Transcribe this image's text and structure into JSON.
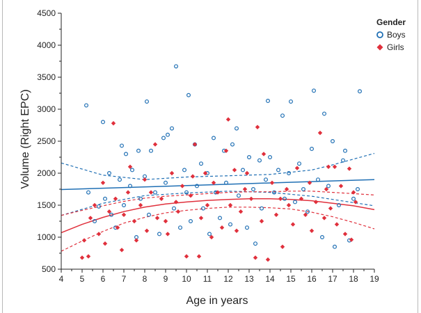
{
  "chart_data": {
    "type": "scatter",
    "xlabel": "Age in years",
    "ylabel": "Volume (Right EPC)",
    "xlim": [
      4,
      19
    ],
    "ylim": [
      500,
      4500
    ],
    "xticks": [
      "4",
      "5",
      "6",
      "7",
      "8",
      "9",
      "10",
      "11",
      "12",
      "13",
      "14",
      "15",
      "16",
      "17",
      "18",
      "19"
    ],
    "yticks": [
      "500",
      "1000",
      "1500",
      "2000",
      "2500",
      "3000",
      "3500",
      "4000",
      "4500"
    ],
    "grid": false,
    "legend": {
      "title": "Gender",
      "placement": "right",
      "entries": [
        {
          "label": "Boys",
          "color": "#1f6fb4",
          "marker": "open-circle"
        },
        {
          "label": "Girls",
          "color": "#e0303c",
          "marker": "filled-diamond"
        }
      ]
    },
    "series": [
      {
        "name": "Boys",
        "color": "#1f6fb4",
        "marker": "open-circle",
        "points": [
          [
            5.2,
            3060
          ],
          [
            5.3,
            1700
          ],
          [
            5.6,
            1250
          ],
          [
            5.8,
            1480
          ],
          [
            6.0,
            2800
          ],
          [
            6.1,
            1600
          ],
          [
            6.3,
            2000
          ],
          [
            6.4,
            1350
          ],
          [
            6.6,
            1150
          ],
          [
            6.8,
            1900
          ],
          [
            6.9,
            2430
          ],
          [
            7.0,
            1500
          ],
          [
            7.1,
            2300
          ],
          [
            7.3,
            1800
          ],
          [
            7.4,
            2050
          ],
          [
            7.6,
            1000
          ],
          [
            7.7,
            2350
          ],
          [
            7.8,
            1600
          ],
          [
            8.0,
            1950
          ],
          [
            8.1,
            3120
          ],
          [
            8.2,
            1350
          ],
          [
            8.3,
            2350
          ],
          [
            8.5,
            1700
          ],
          [
            8.7,
            1050
          ],
          [
            8.9,
            2550
          ],
          [
            9.0,
            1850
          ],
          [
            9.1,
            2600
          ],
          [
            9.3,
            2700
          ],
          [
            9.4,
            1450
          ],
          [
            9.5,
            3670
          ],
          [
            9.7,
            1150
          ],
          [
            9.9,
            2050
          ],
          [
            10.0,
            1700
          ],
          [
            10.1,
            3220
          ],
          [
            10.2,
            1250
          ],
          [
            10.4,
            2450
          ],
          [
            10.5,
            1800
          ],
          [
            10.7,
            2150
          ],
          [
            10.8,
            1450
          ],
          [
            11.0,
            2000
          ],
          [
            11.1,
            1050
          ],
          [
            11.3,
            2550
          ],
          [
            11.4,
            1700
          ],
          [
            11.6,
            1300
          ],
          [
            11.8,
            2350
          ],
          [
            11.9,
            1850
          ],
          [
            12.1,
            1200
          ],
          [
            12.2,
            2450
          ],
          [
            12.4,
            2700
          ],
          [
            12.5,
            1650
          ],
          [
            12.7,
            2050
          ],
          [
            12.9,
            1150
          ],
          [
            13.0,
            2250
          ],
          [
            13.2,
            1750
          ],
          [
            13.3,
            900
          ],
          [
            13.5,
            2200
          ],
          [
            13.6,
            1450
          ],
          [
            13.8,
            1900
          ],
          [
            13.9,
            3130
          ],
          [
            14.0,
            2250
          ],
          [
            14.2,
            1700
          ],
          [
            14.4,
            2050
          ],
          [
            14.6,
            2900
          ],
          [
            14.7,
            1600
          ],
          [
            14.9,
            2000
          ],
          [
            15.0,
            3120
          ],
          [
            15.2,
            1550
          ],
          [
            15.4,
            2150
          ],
          [
            15.6,
            1750
          ],
          [
            15.8,
            1400
          ],
          [
            16.0,
            2380
          ],
          [
            16.1,
            3290
          ],
          [
            16.3,
            1900
          ],
          [
            16.5,
            1000
          ],
          [
            16.6,
            2930
          ],
          [
            16.8,
            1800
          ],
          [
            17.0,
            2500
          ],
          [
            17.1,
            850
          ],
          [
            17.3,
            1500
          ],
          [
            17.5,
            2200
          ],
          [
            17.6,
            2350
          ],
          [
            17.8,
            950
          ],
          [
            18.0,
            1600
          ],
          [
            18.2,
            1750
          ],
          [
            18.3,
            3280
          ]
        ]
      },
      {
        "name": "Girls",
        "color": "#e0303c",
        "marker": "filled-diamond",
        "points": [
          [
            5.0,
            680
          ],
          [
            5.1,
            950
          ],
          [
            5.3,
            700
          ],
          [
            5.4,
            1300
          ],
          [
            5.6,
            1500
          ],
          [
            5.8,
            1050
          ],
          [
            6.0,
            1850
          ],
          [
            6.1,
            900
          ],
          [
            6.3,
            1400
          ],
          [
            6.5,
            2780
          ],
          [
            6.6,
            1600
          ],
          [
            6.7,
            1150
          ],
          [
            6.9,
            800
          ],
          [
            7.0,
            1350
          ],
          [
            7.2,
            1700
          ],
          [
            7.3,
            2100
          ],
          [
            7.5,
            1250
          ],
          [
            7.6,
            950
          ],
          [
            7.8,
            1500
          ],
          [
            8.0,
            1900
          ],
          [
            8.1,
            1100
          ],
          [
            8.3,
            1700
          ],
          [
            8.5,
            2450
          ],
          [
            8.6,
            1300
          ],
          [
            8.8,
            1600
          ],
          [
            9.0,
            1250
          ],
          [
            9.1,
            1050
          ],
          [
            9.3,
            2000
          ],
          [
            9.5,
            1550
          ],
          [
            9.6,
            1400
          ],
          [
            9.8,
            1800
          ],
          [
            10.0,
            700
          ],
          [
            10.2,
            1650
          ],
          [
            10.3,
            1950
          ],
          [
            10.4,
            2450
          ],
          [
            10.6,
            700
          ],
          [
            10.7,
            1300
          ],
          [
            10.9,
            2000
          ],
          [
            11.0,
            1500
          ],
          [
            11.2,
            1000
          ],
          [
            11.3,
            1850
          ],
          [
            11.5,
            1700
          ],
          [
            11.7,
            1150
          ],
          [
            11.9,
            2350
          ],
          [
            12.0,
            2840
          ],
          [
            12.1,
            1500
          ],
          [
            12.3,
            2050
          ],
          [
            12.4,
            1100
          ],
          [
            12.6,
            1400
          ],
          [
            12.8,
            1750
          ],
          [
            12.9,
            2000
          ],
          [
            13.1,
            1600
          ],
          [
            13.3,
            680
          ],
          [
            13.4,
            2720
          ],
          [
            13.6,
            1250
          ],
          [
            13.7,
            2300
          ],
          [
            13.9,
            650
          ],
          [
            14.1,
            1850
          ],
          [
            14.3,
            1350
          ],
          [
            14.5,
            1600
          ],
          [
            14.6,
            850
          ],
          [
            14.8,
            1750
          ],
          [
            14.9,
            1500
          ],
          [
            15.1,
            1200
          ],
          [
            15.3,
            2080
          ],
          [
            15.5,
            1600
          ],
          [
            15.7,
            1350
          ],
          [
            15.9,
            1850
          ],
          [
            16.0,
            1100
          ],
          [
            16.2,
            1550
          ],
          [
            16.4,
            2630
          ],
          [
            16.6,
            1300
          ],
          [
            16.7,
            1750
          ],
          [
            16.9,
            1450
          ],
          [
            17.1,
            2100
          ],
          [
            17.2,
            1200
          ],
          [
            17.4,
            1800
          ],
          [
            17.6,
            1050
          ],
          [
            17.8,
            2070
          ],
          [
            18.0,
            1700
          ],
          [
            18.1,
            1550
          ],
          [
            17.9,
            960
          ],
          [
            16.8,
            2100
          ]
        ]
      },
      {
        "name": "Boys",
        "type": "fit",
        "color": "#1f6fb4",
        "fit": [
          [
            4,
            1745
          ],
          [
            19,
            1900
          ]
        ],
        "ci_upper": [
          [
            4,
            2160
          ],
          [
            6,
            1970
          ],
          [
            8,
            1900
          ],
          [
            10,
            1940
          ],
          [
            12,
            1960
          ],
          [
            14,
            1980
          ],
          [
            16,
            2050
          ],
          [
            17,
            2130
          ],
          [
            19,
            2310
          ]
        ],
        "ci_lower": [
          [
            4,
            1340
          ],
          [
            6,
            1530
          ],
          [
            8,
            1650
          ],
          [
            10,
            1690
          ],
          [
            12,
            1720
          ],
          [
            14,
            1700
          ],
          [
            16,
            1640
          ],
          [
            17,
            1590
          ],
          [
            19,
            1490
          ]
        ]
      },
      {
        "name": "Girls",
        "type": "fit",
        "color": "#e0303c",
        "fit": [
          [
            4,
            1070
          ],
          [
            5,
            1200
          ],
          [
            6,
            1310
          ],
          [
            7,
            1400
          ],
          [
            8,
            1470
          ],
          [
            9,
            1520
          ],
          [
            10,
            1550
          ],
          [
            11,
            1575
          ],
          [
            12,
            1590
          ],
          [
            13,
            1600
          ],
          [
            14,
            1600
          ],
          [
            15,
            1590
          ],
          [
            16,
            1570
          ],
          [
            17,
            1530
          ],
          [
            18,
            1490
          ],
          [
            19,
            1430
          ]
        ],
        "ci_upper": [
          [
            4,
            1340
          ],
          [
            5,
            1420
          ],
          [
            6,
            1490
          ],
          [
            7,
            1560
          ],
          [
            8,
            1610
          ],
          [
            9,
            1640
          ],
          [
            10,
            1660
          ],
          [
            11,
            1680
          ],
          [
            12,
            1700
          ],
          [
            13,
            1710
          ],
          [
            14,
            1710
          ],
          [
            15,
            1720
          ],
          [
            16,
            1720
          ],
          [
            17,
            1700
          ],
          [
            18,
            1680
          ],
          [
            19,
            1660
          ]
        ],
        "ci_lower": [
          [
            4,
            780
          ],
          [
            5,
            940
          ],
          [
            6,
            1090
          ],
          [
            7,
            1220
          ],
          [
            8,
            1310
          ],
          [
            9,
            1380
          ],
          [
            10,
            1420
          ],
          [
            11,
            1450
          ],
          [
            12,
            1470
          ],
          [
            13,
            1470
          ],
          [
            14,
            1460
          ],
          [
            15,
            1440
          ],
          [
            16,
            1390
          ],
          [
            17,
            1320
          ],
          [
            18,
            1230
          ],
          [
            19,
            1130
          ]
        ]
      }
    ]
  }
}
